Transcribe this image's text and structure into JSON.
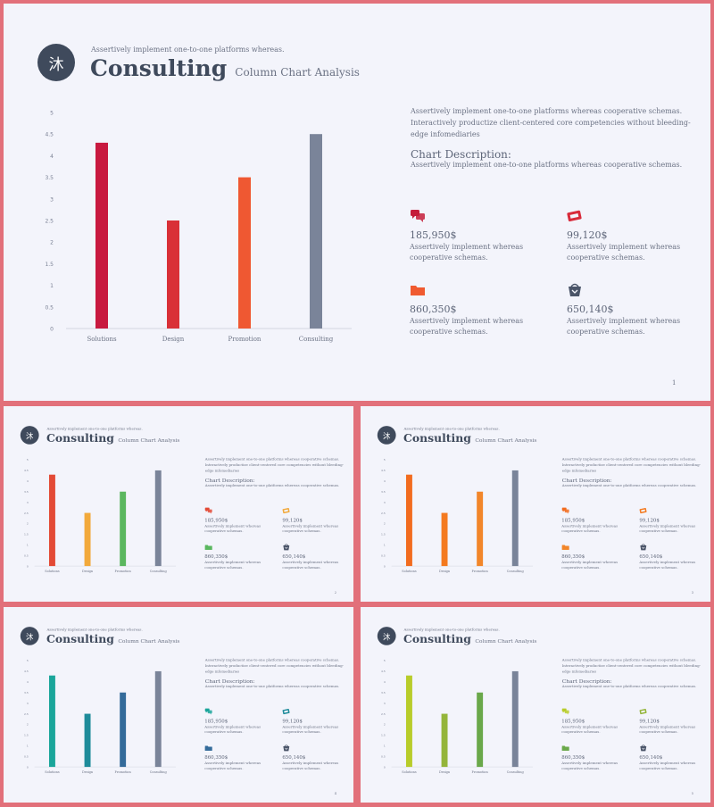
{
  "slide": {
    "logo_char": "沐",
    "tagline": "Assertively implement one-to-one platforms whereas.",
    "title": "Consulting",
    "subtitle": "Column Chart Analysis",
    "intro": "Assertively implement one-to-one platforms whereas cooperative schemas. Interactively productize client-centered core competencies without bleeding-edge infomediaries",
    "desc_title": "Chart Description:",
    "desc_text": "Assertively implement one-to-one platforms whereas cooperative schemas.",
    "stats": [
      {
        "value": "185,950$",
        "text": "Assertively implement whereas cooperative schemas.",
        "icon": "chat-icon"
      },
      {
        "value": "99,120$",
        "text": "Assertively implement whereas cooperative schemas.",
        "icon": "ticket-icon"
      },
      {
        "value": "860,350$",
        "text": "Assertively implement whereas cooperative schemas.",
        "icon": "folder-icon"
      },
      {
        "value": "650,140$",
        "text": "Assertively implement whereas cooperative schemas.",
        "icon": "basket-icon"
      }
    ]
  },
  "thumb_values": {
    "stat_1": "185,950$",
    "stat_2": "99,120$",
    "stat_3": "860,350$",
    "stat_4": "650,140$"
  },
  "chart_data": {
    "type": "bar",
    "categories": [
      "Solutions",
      "Design",
      "Promotion",
      "Consulting"
    ],
    "values": [
      4.3,
      2.5,
      3.5,
      4.5
    ],
    "ylim": [
      0,
      5
    ],
    "yticks": [
      "0",
      "0.5",
      "1",
      "1.5",
      "2",
      "2.5",
      "3",
      "3.5",
      "4",
      "4.5",
      "5"
    ],
    "grid": false,
    "legend": "none"
  },
  "themes": [
    {
      "name": "main",
      "colors": [
        "#c8193f",
        "#d93037",
        "#ef5832",
        "#7a8499"
      ],
      "icon_colors": [
        "#c41d3a",
        "#d82a3a",
        "#f05a30",
        "#4a5468"
      ]
    },
    {
      "name": "thumb-1",
      "colors": [
        "#e34a36",
        "#f2a93b",
        "#5bb75f",
        "#7a8499"
      ],
      "icon_colors": [
        "#e34a36",
        "#f2a93b",
        "#5bb75f",
        "#4a5468"
      ]
    },
    {
      "name": "thumb-2",
      "colors": [
        "#f26c1f",
        "#f47a1f",
        "#f2862a",
        "#7a8499"
      ],
      "icon_colors": [
        "#f26c1f",
        "#f47a1f",
        "#f2862a",
        "#4a5468"
      ]
    },
    {
      "name": "thumb-3",
      "colors": [
        "#1aa59a",
        "#1e8b9a",
        "#346b9a",
        "#7a8499"
      ],
      "icon_colors": [
        "#1aa59a",
        "#1e8b9a",
        "#346b9a",
        "#4a5468"
      ]
    },
    {
      "name": "thumb-4",
      "colors": [
        "#b8cc2a",
        "#94b53a",
        "#6aa84a",
        "#7a8499"
      ],
      "icon_colors": [
        "#b8cc2a",
        "#94b53a",
        "#6aa84a",
        "#4a5468"
      ]
    }
  ],
  "pages": [
    "1",
    "2",
    "3",
    "4",
    "5"
  ]
}
